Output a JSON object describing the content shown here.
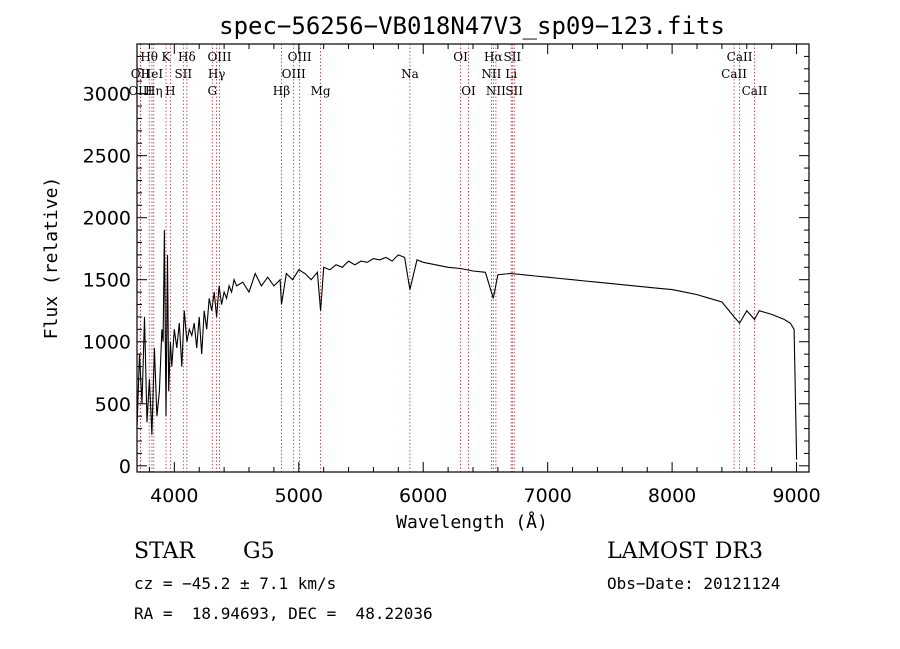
{
  "chart_data": {
    "type": "line",
    "title": "spec−56256−VB018N47V3_sp09−123.fits",
    "xlabel": "Wavelength (Å)",
    "ylabel": "Flux (relative)",
    "xlim": [
      3700,
      9100
    ],
    "ylim": [
      -50,
      3400
    ],
    "xticks": [
      4000,
      5000,
      6000,
      7000,
      8000,
      9000
    ],
    "yticks": [
      0,
      500,
      1000,
      1500,
      2000,
      2500,
      3000
    ],
    "grid": false,
    "series": [
      {
        "name": "flux",
        "x": [
          3700,
          3720,
          3740,
          3760,
          3780,
          3800,
          3820,
          3840,
          3860,
          3880,
          3900,
          3910,
          3920,
          3933,
          3945,
          3955,
          3968,
          3980,
          4000,
          4020,
          4040,
          4060,
          4080,
          4101,
          4120,
          4140,
          4160,
          4180,
          4200,
          4220,
          4240,
          4260,
          4280,
          4300,
          4320,
          4340,
          4360,
          4380,
          4400,
          4420,
          4440,
          4460,
          4480,
          4500,
          4550,
          4600,
          4650,
          4700,
          4750,
          4800,
          4850,
          4861,
          4900,
          4950,
          5000,
          5050,
          5100,
          5150,
          5175,
          5200,
          5250,
          5300,
          5350,
          5400,
          5450,
          5500,
          5550,
          5600,
          5650,
          5700,
          5750,
          5800,
          5850,
          5893,
          5950,
          6000,
          6100,
          6200,
          6300,
          6400,
          6500,
          6563,
          6600,
          6700,
          6800,
          6900,
          7000,
          7100,
          7200,
          7300,
          7400,
          7500,
          7600,
          7700,
          7800,
          7900,
          8000,
          8100,
          8200,
          8300,
          8400,
          8498,
          8542,
          8600,
          8662,
          8700,
          8800,
          8850,
          8900,
          8950,
          8980,
          9000
        ],
        "y": [
          300,
          900,
          500,
          1200,
          350,
          700,
          250,
          950,
          400,
          600,
          1100,
          1000,
          1900,
          400,
          1700,
          600,
          1000,
          800,
          1100,
          950,
          1150,
          800,
          1250,
          1000,
          1100,
          1050,
          1150,
          950,
          1200,
          900,
          1250,
          1100,
          1350,
          1250,
          1400,
          1200,
          1450,
          1300,
          1400,
          1350,
          1450,
          1400,
          1500,
          1450,
          1480,
          1400,
          1550,
          1450,
          1520,
          1450,
          1500,
          1300,
          1550,
          1500,
          1580,
          1550,
          1500,
          1560,
          1250,
          1600,
          1580,
          1620,
          1600,
          1650,
          1620,
          1650,
          1640,
          1670,
          1660,
          1680,
          1650,
          1700,
          1680,
          1420,
          1660,
          1640,
          1620,
          1600,
          1590,
          1570,
          1560,
          1350,
          1540,
          1550,
          1540,
          1530,
          1520,
          1510,
          1500,
          1490,
          1480,
          1470,
          1460,
          1450,
          1440,
          1430,
          1420,
          1400,
          1380,
          1350,
          1320,
          1200,
          1150,
          1250,
          1180,
          1250,
          1220,
          1200,
          1180,
          1150,
          1100,
          50
        ]
      }
    ],
    "lines": [
      {
        "label": "Hθ",
        "x": 3798,
        "row": 0
      },
      {
        "label": "OII",
        "x": 3727,
        "row": 1
      },
      {
        "label": "OIII",
        "x": 3727,
        "row": 2
      },
      {
        "label": "HeI",
        "x": 3820,
        "row": 1
      },
      {
        "label": "Hη",
        "x": 3835,
        "row": 2
      },
      {
        "label": "K",
        "x": 3933,
        "row": 0
      },
      {
        "label": "H",
        "x": 3968,
        "row": 2
      },
      {
        "label": "SII",
        "x": 4072,
        "row": 1
      },
      {
        "label": "Hδ",
        "x": 4101,
        "row": 0
      },
      {
        "label": "OIII",
        "x": 4363,
        "row": 0
      },
      {
        "label": "Hγ",
        "x": 4340,
        "row": 1
      },
      {
        "label": "G",
        "x": 4305,
        "row": 2
      },
      {
        "label": "OIII",
        "x": 5007,
        "row": 0
      },
      {
        "label": "OIII",
        "x": 4959,
        "row": 1
      },
      {
        "label": "Hβ",
        "x": 4861,
        "row": 2
      },
      {
        "label": "Mg",
        "x": 5175,
        "row": 2
      },
      {
        "label": "Na",
        "x": 5893,
        "row": 1
      },
      {
        "label": "OI",
        "x": 6300,
        "row": 0
      },
      {
        "label": "OI",
        "x": 6364,
        "row": 2
      },
      {
        "label": "Hα",
        "x": 6563,
        "row": 0
      },
      {
        "label": "SII",
        "x": 6716,
        "row": 0
      },
      {
        "label": "NII",
        "x": 6548,
        "row": 1
      },
      {
        "label": "Li",
        "x": 6707,
        "row": 1
      },
      {
        "label": "NII",
        "x": 6584,
        "row": 2
      },
      {
        "label": "SII",
        "x": 6731,
        "row": 2
      },
      {
        "label": "CaII",
        "x": 8542,
        "row": 0
      },
      {
        "label": "CaII",
        "x": 8498,
        "row": 1
      },
      {
        "label": "CaII",
        "x": 8662,
        "row": 2
      }
    ]
  },
  "info": {
    "class": "STAR",
    "subclass": "G5",
    "survey": "LAMOST DR3",
    "cz": "cz = −45.2 ± 7.1 km/s",
    "obs_date": "Obs−Date: 20121124",
    "radec": "RA =  18.94693, DEC =  48.22036"
  },
  "colors": {
    "line_marker": "#b03030",
    "spectrum": "#000000"
  }
}
